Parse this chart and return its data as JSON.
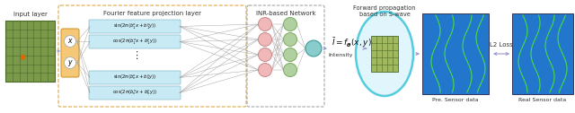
{
  "bg_color": "#ffffff",
  "input_layer_label": "Input layer",
  "fourier_label": "Fourier feature projection layer",
  "inr_label": "INR-based Network",
  "forward_label": "Forward propagation\nbased on S-wave",
  "intensity_label": "Intensity",
  "pre_sensor_label": "Pre. Sensor data",
  "real_sensor_label": "Real Sensor data",
  "l2_loss_label": "L2 Loss",
  "formula_output": "$\\bar{I}=f_{\\boldsymbol{\\theta}}(x,y)$",
  "fourier_formulas": [
    "$\\sin(2\\pi(b_1^x x+b_1^y y))$",
    "$\\cos(2\\pi(b_1^x x+b_1^y y))$",
    "$\\sin(2\\pi(b_n^x x+b_n^y y))$",
    "$\\cos(2\\pi(b_n^x x+b_n^y y))$"
  ],
  "grid_color": "#4a6a2a",
  "grid_bg": "#7a9a4a",
  "fourier_box_fc": "#c8eaf5",
  "fourier_box_ec": "#88bbcc",
  "orange_box_fc": "#f5c878",
  "orange_box_ec": "#d49a30",
  "neural_pink": "#f0b8b8",
  "neural_pink_ec": "#cc8888",
  "neural_green": "#b0d0a0",
  "neural_green_ec": "#7aaa60",
  "neural_cyan_fc": "#88cccc",
  "neural_cyan_ec": "#449999",
  "ellipse_fc": "#e0f5fc",
  "ellipse_ec": "#55ccdd",
  "arrow_color": "#9999cc",
  "sensor_bg": "#2277cc",
  "sensor_line": "#44dd44",
  "sensor_line2": "#22aa22",
  "text_color": "#333333",
  "conn_color": "#999999",
  "fp_box_ec": "#ddaa44",
  "inr_box_ec": "#999999",
  "small_grid_fc": "#a0b860",
  "small_grid_ec": "#4a6a2a"
}
